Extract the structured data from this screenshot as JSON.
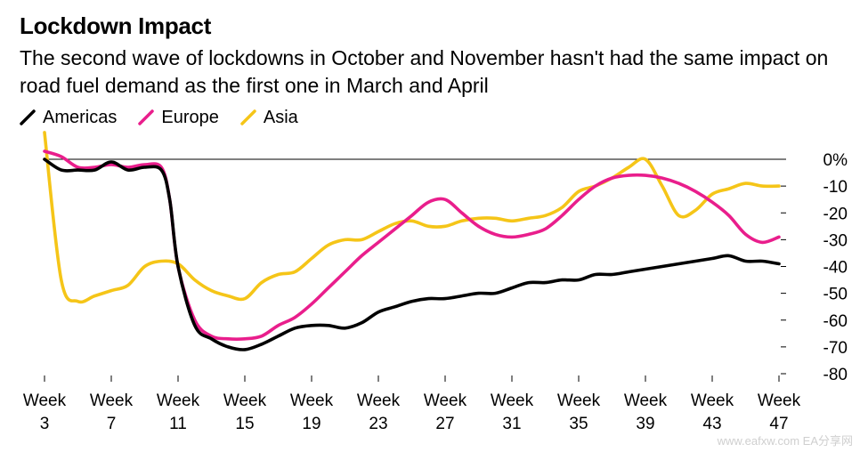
{
  "chart_data": {
    "type": "line",
    "title": "Lockdown Impact",
    "subtitle": "The second wave of lockdowns in October and November hasn't had the same impact on road fuel demand as the first one in March and April",
    "xlabel": "",
    "ylabel": "",
    "ylim": [
      -80,
      0
    ],
    "yticks": [
      "0%",
      "-10",
      "-20",
      "-30",
      "-40",
      "-50",
      "-60",
      "-70",
      "-80"
    ],
    "xticks": [
      {
        "line1": "Week",
        "line2": "3"
      },
      {
        "line1": "Week",
        "line2": "7"
      },
      {
        "line1": "Week",
        "line2": "11"
      },
      {
        "line1": "Week",
        "line2": "15"
      },
      {
        "line1": "Week",
        "line2": "19"
      },
      {
        "line1": "Week",
        "line2": "23"
      },
      {
        "line1": "Week",
        "line2": "27"
      },
      {
        "line1": "Week",
        "line2": "31"
      },
      {
        "line1": "Week",
        "line2": "35"
      },
      {
        "line1": "Week",
        "line2": "39"
      },
      {
        "line1": "Week",
        "line2": "43"
      },
      {
        "line1": "Week",
        "line2": "47"
      }
    ],
    "legend_position": "top-left",
    "grid": false,
    "zero_line": true,
    "series": [
      {
        "name": "Americas",
        "color": "#000000",
        "points": [
          [
            3,
            0
          ],
          [
            4,
            -4
          ],
          [
            5,
            -4
          ],
          [
            6,
            -4
          ],
          [
            7,
            -1
          ],
          [
            8,
            -4
          ],
          [
            9,
            -3
          ],
          [
            10,
            -4
          ],
          [
            10.5,
            -15
          ],
          [
            11,
            -40
          ],
          [
            12,
            -62
          ],
          [
            13,
            -67
          ],
          [
            14,
            -70
          ],
          [
            15,
            -71
          ],
          [
            16,
            -69
          ],
          [
            17,
            -66
          ],
          [
            18,
            -63
          ],
          [
            19,
            -62
          ],
          [
            20,
            -62
          ],
          [
            21,
            -63
          ],
          [
            22,
            -61
          ],
          [
            23,
            -57
          ],
          [
            24,
            -55
          ],
          [
            25,
            -53
          ],
          [
            26,
            -52
          ],
          [
            27,
            -52
          ],
          [
            28,
            -51
          ],
          [
            29,
            -50
          ],
          [
            30,
            -50
          ],
          [
            31,
            -48
          ],
          [
            32,
            -46
          ],
          [
            33,
            -46
          ],
          [
            34,
            -45
          ],
          [
            35,
            -45
          ],
          [
            36,
            -43
          ],
          [
            37,
            -43
          ],
          [
            38,
            -42
          ],
          [
            39,
            -41
          ],
          [
            40,
            -40
          ],
          [
            41,
            -39
          ],
          [
            42,
            -38
          ],
          [
            43,
            -37
          ],
          [
            44,
            -36
          ],
          [
            45,
            -38
          ],
          [
            46,
            -38
          ],
          [
            47,
            -39
          ]
        ]
      },
      {
        "name": "Europe",
        "color": "#e91e8c",
        "points": [
          [
            3,
            3
          ],
          [
            4,
            1
          ],
          [
            5,
            -3
          ],
          [
            6,
            -3
          ],
          [
            7,
            -2
          ],
          [
            8,
            -3
          ],
          [
            9,
            -2
          ],
          [
            10,
            -3
          ],
          [
            10.5,
            -15
          ],
          [
            11,
            -40
          ],
          [
            12,
            -60
          ],
          [
            13,
            -66
          ],
          [
            14,
            -67
          ],
          [
            15,
            -67
          ],
          [
            16,
            -66
          ],
          [
            17,
            -62
          ],
          [
            18,
            -59
          ],
          [
            19,
            -54
          ],
          [
            20,
            -48
          ],
          [
            21,
            -42
          ],
          [
            22,
            -36
          ],
          [
            23,
            -31
          ],
          [
            24,
            -26
          ],
          [
            25,
            -21
          ],
          [
            26,
            -16
          ],
          [
            27,
            -15
          ],
          [
            28,
            -20
          ],
          [
            29,
            -25
          ],
          [
            30,
            -28
          ],
          [
            31,
            -29
          ],
          [
            32,
            -28
          ],
          [
            33,
            -26
          ],
          [
            34,
            -21
          ],
          [
            35,
            -15
          ],
          [
            36,
            -10
          ],
          [
            37,
            -7
          ],
          [
            38,
            -6
          ],
          [
            39,
            -6
          ],
          [
            40,
            -7
          ],
          [
            41,
            -9
          ],
          [
            42,
            -12
          ],
          [
            43,
            -16
          ],
          [
            44,
            -21
          ],
          [
            45,
            -28
          ],
          [
            46,
            -31
          ],
          [
            47,
            -29
          ]
        ]
      },
      {
        "name": "Asia",
        "color": "#f5c518",
        "points": [
          [
            3,
            10
          ],
          [
            4,
            -45
          ],
          [
            5,
            -53
          ],
          [
            6,
            -51
          ],
          [
            7,
            -49
          ],
          [
            8,
            -47
          ],
          [
            9,
            -40
          ],
          [
            10,
            -38
          ],
          [
            11,
            -39
          ],
          [
            12,
            -45
          ],
          [
            13,
            -49
          ],
          [
            14,
            -51
          ],
          [
            15,
            -52
          ],
          [
            16,
            -46
          ],
          [
            17,
            -43
          ],
          [
            18,
            -42
          ],
          [
            19,
            -37
          ],
          [
            20,
            -32
          ],
          [
            21,
            -30
          ],
          [
            22,
            -30
          ],
          [
            23,
            -27
          ],
          [
            24,
            -24
          ],
          [
            25,
            -23
          ],
          [
            26,
            -25
          ],
          [
            27,
            -25
          ],
          [
            28,
            -23
          ],
          [
            29,
            -22
          ],
          [
            30,
            -22
          ],
          [
            31,
            -23
          ],
          [
            32,
            -22
          ],
          [
            33,
            -21
          ],
          [
            34,
            -18
          ],
          [
            35,
            -12
          ],
          [
            36,
            -10
          ],
          [
            37,
            -7
          ],
          [
            38,
            -3
          ],
          [
            39,
            0
          ],
          [
            40,
            -10
          ],
          [
            41,
            -21
          ],
          [
            42,
            -19
          ],
          [
            43,
            -13
          ],
          [
            44,
            -11
          ],
          [
            45,
            -9
          ],
          [
            46,
            -10
          ],
          [
            47,
            -10
          ]
        ]
      }
    ]
  },
  "watermark": "www.eafxw.com  EA分享网"
}
